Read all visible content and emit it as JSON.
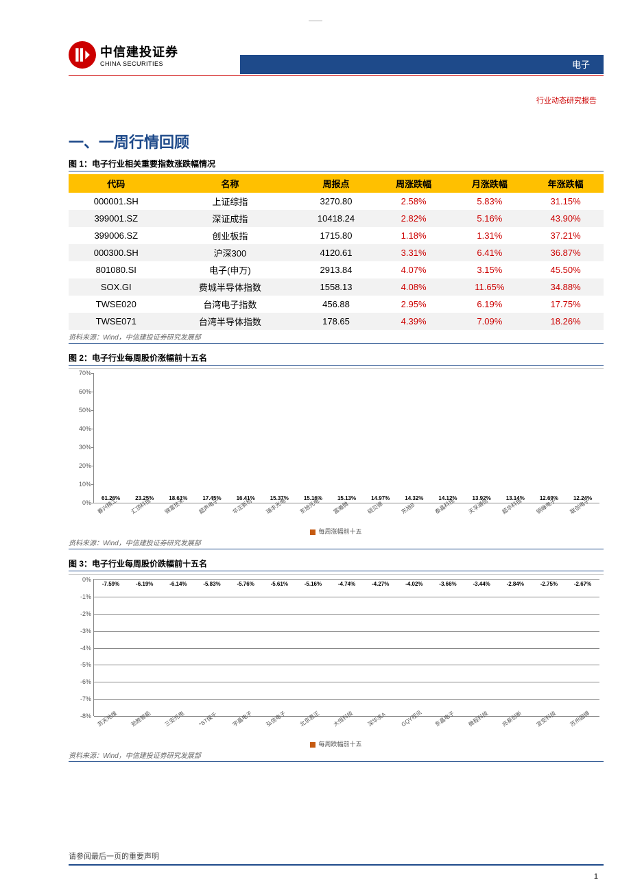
{
  "header": {
    "logo_cn": "中信建投证券",
    "logo_en": "CHINA SECURITIES",
    "category": "电子",
    "report_type": "行业动态研究报告"
  },
  "section_title": "一、一周行情回顾",
  "table1": {
    "caption": "图 1：电子行业相关重要指数涨跌幅情况",
    "headers": [
      "代码",
      "名称",
      "周报点",
      "周涨跌幅",
      "月涨跌幅",
      "年涨跌幅"
    ],
    "rows": [
      [
        "000001.SH",
        "上证综指",
        "3270.80",
        "2.58%",
        "5.83%",
        "31.15%"
      ],
      [
        "399001.SZ",
        "深证成指",
        "10418.24",
        "2.82%",
        "5.16%",
        "43.90%"
      ],
      [
        "399006.SZ",
        "创业板指",
        "1715.80",
        "1.18%",
        "1.31%",
        "37.21%"
      ],
      [
        "000300.SH",
        "沪深300",
        "4120.61",
        "3.31%",
        "6.41%",
        "36.87%"
      ],
      [
        "801080.SI",
        "电子(申万)",
        "2913.84",
        "4.07%",
        "3.15%",
        "45.50%"
      ],
      [
        "SOX.GI",
        "费城半导体指数",
        "1558.13",
        "4.08%",
        "11.65%",
        "34.88%"
      ],
      [
        "TWSE020",
        "台湾电子指数",
        "456.88",
        "2.95%",
        "6.19%",
        "17.75%"
      ],
      [
        "TWSE071",
        "台湾半导体指数",
        "178.65",
        "4.39%",
        "7.09%",
        "18.26%"
      ]
    ],
    "source": "资料来源：Wind，中信建投证券研究发展部"
  },
  "chart_top": {
    "caption": "图 2：电子行业每周股价涨幅前十五名",
    "type": "bar",
    "ylim": [
      0,
      70
    ],
    "ytick_step": 10,
    "ytick_suffix": "%",
    "bar_color": "#c55a11",
    "labels": [
      "春兴精工",
      "汇顶科技",
      "锦富技术",
      "超声电子",
      "华正新材",
      "瑞丰光电",
      "东旭光电",
      "富瀚微",
      "硕贝德",
      "东旭B",
      "泰晶科技",
      "天孚通信",
      "超华科技",
      "铜峰电子",
      "联创电子"
    ],
    "values": [
      61.26,
      23.25,
      18.61,
      17.45,
      16.41,
      15.37,
      15.16,
      15.13,
      14.97,
      14.32,
      14.12,
      13.92,
      13.14,
      12.69,
      12.24
    ],
    "legend": "每周涨幅前十五",
    "source": "资料来源：Wind，中信建投证券研究发展部"
  },
  "chart_bot": {
    "caption": "图 3：电子行业每周股价跌幅前十五名",
    "type": "bar",
    "ylim": [
      -8,
      0
    ],
    "ytick_step": 1,
    "ytick_suffix": "%",
    "bar_color": "#c55a11",
    "labels": [
      "苏天地维",
      "劲胜智能",
      "三安光电",
      "*ST保千",
      "宇晶电子",
      "弘信电子",
      "北京君正",
      "大恒科技",
      "深华发A",
      "GQY视讯",
      "东晶电子",
      "微程科技",
      "兆易创新",
      "宜安科技",
      "苏州固锝"
    ],
    "values": [
      -7.59,
      -6.19,
      -6.14,
      -5.83,
      -5.76,
      -5.61,
      -5.16,
      -4.74,
      -4.27,
      -4.02,
      -3.66,
      -3.44,
      -2.84,
      -2.75,
      -2.67
    ],
    "legend": "每周跌幅前十五",
    "source": "资料来源：Wind，中信建投证券研究发展部"
  },
  "footer": {
    "note": "请参阅最后一页的重要声明",
    "page": "1"
  }
}
